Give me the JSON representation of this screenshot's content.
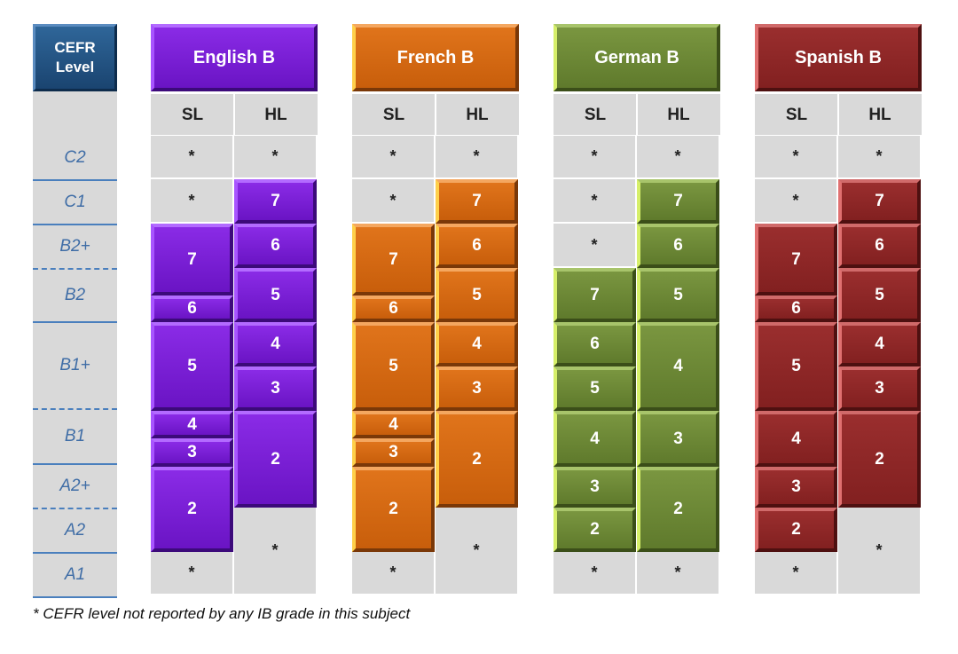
{
  "cefr_header": {
    "line1": "CEFR",
    "line2": "Level"
  },
  "cefr_levels": [
    "C2",
    "C1",
    "B2+",
    "B2",
    "B1+",
    "B1",
    "A2+",
    "A2",
    "A1"
  ],
  "level_labels": {
    "sl": "SL",
    "hl": "HL"
  },
  "star": "*",
  "subjects": [
    {
      "name": "English B",
      "palette": "english",
      "sl": {
        "grades": [
          "7",
          "6",
          "5",
          "4",
          "3",
          "2"
        ]
      },
      "hl": {
        "grades": [
          "7",
          "6",
          "5",
          "4",
          "3",
          "2"
        ]
      }
    },
    {
      "name": "French B",
      "palette": "french",
      "sl": {
        "grades": [
          "7",
          "6",
          "5",
          "4",
          "3",
          "2"
        ]
      },
      "hl": {
        "grades": [
          "7",
          "6",
          "5",
          "4",
          "3",
          "2"
        ]
      }
    },
    {
      "name": "German B",
      "palette": "german",
      "sl": {
        "grades": [
          "7",
          "6",
          "5",
          "4",
          "3",
          "2"
        ]
      },
      "hl": {
        "grades": [
          "7",
          "6",
          "5",
          "4",
          "3",
          "2"
        ]
      }
    },
    {
      "name": "Spanish B",
      "palette": "spanish",
      "sl": {
        "grades": [
          "7",
          "6",
          "5",
          "4",
          "3",
          "2"
        ]
      },
      "hl": {
        "grades": [
          "7",
          "6",
          "5",
          "4",
          "3",
          "2"
        ]
      }
    }
  ],
  "footnote": "* CEFR level not reported by any IB grade in this subject"
}
